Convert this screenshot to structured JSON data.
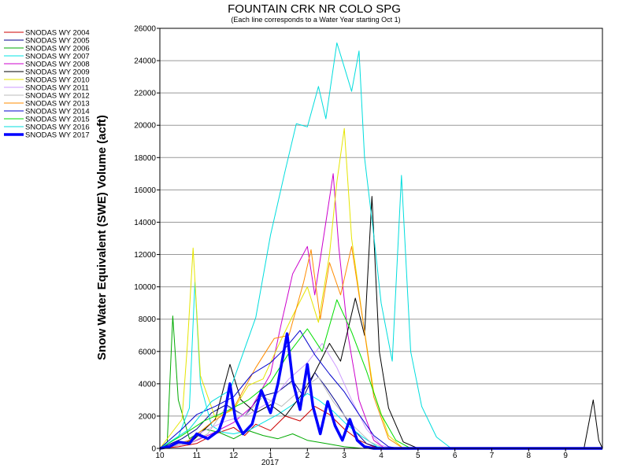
{
  "chart_data": {
    "type": "line",
    "title": "FOUNTAIN CRK NR COLO SPG",
    "subtitle": "(Each line corresponds to a Water Year starting Oct 1)",
    "ylabel": "Snow Water Equivalent (SWE) Volume (acft)",
    "xlabel": "",
    "x_ticks": [
      "10",
      "11",
      "12",
      "1",
      "2",
      "3",
      "4",
      "5",
      "6",
      "7",
      "8",
      "9"
    ],
    "x_year_label": "2017",
    "xlim": [
      0,
      12
    ],
    "ylim": [
      0,
      26000
    ],
    "y_ticks": [
      0,
      2000,
      4000,
      6000,
      8000,
      10000,
      12000,
      14000,
      16000,
      18000,
      20000,
      22000,
      24000,
      26000
    ],
    "grid": true,
    "legend_position": "left",
    "series": [
      {
        "name": "SNODAS WY 2004",
        "color": "#cc0000",
        "width": 1,
        "points": [
          [
            0.0,
            0
          ],
          [
            0.5,
            100
          ],
          [
            1.0,
            300
          ],
          [
            1.5,
            900
          ],
          [
            2.0,
            1300
          ],
          [
            2.3,
            800
          ],
          [
            2.6,
            1500
          ],
          [
            3.0,
            1100
          ],
          [
            3.4,
            2000
          ],
          [
            3.8,
            1700
          ],
          [
            4.2,
            2600
          ],
          [
            4.6,
            2100
          ],
          [
            5.0,
            1200
          ],
          [
            5.4,
            500
          ],
          [
            5.8,
            100
          ],
          [
            6.1,
            0
          ],
          [
            12,
            0
          ]
        ]
      },
      {
        "name": "SNODAS WY 2005",
        "color": "#00008b",
        "width": 1,
        "points": [
          [
            0.0,
            0
          ],
          [
            0.6,
            600
          ],
          [
            1.0,
            1200
          ],
          [
            1.4,
            2200
          ],
          [
            1.8,
            2700
          ],
          [
            2.3,
            2000
          ],
          [
            2.7,
            3200
          ],
          [
            3.2,
            3500
          ],
          [
            3.6,
            4200
          ],
          [
            3.9,
            3200
          ],
          [
            4.2,
            4700
          ],
          [
            4.5,
            3800
          ],
          [
            4.8,
            2800
          ],
          [
            5.2,
            1300
          ],
          [
            5.6,
            300
          ],
          [
            6.0,
            0
          ],
          [
            12,
            0
          ]
        ]
      },
      {
        "name": "SNODAS WY 2006",
        "color": "#00aa00",
        "width": 1,
        "points": [
          [
            0.0,
            0
          ],
          [
            0.2,
            400
          ],
          [
            0.35,
            8200
          ],
          [
            0.5,
            3000
          ],
          [
            0.8,
            600
          ],
          [
            1.2,
            1200
          ],
          [
            1.6,
            1000
          ],
          [
            2.0,
            600
          ],
          [
            2.4,
            1100
          ],
          [
            2.8,
            800
          ],
          [
            3.2,
            600
          ],
          [
            3.6,
            900
          ],
          [
            4.0,
            500
          ],
          [
            4.5,
            300
          ],
          [
            5.0,
            100
          ],
          [
            5.5,
            0
          ],
          [
            12,
            0
          ]
        ]
      },
      {
        "name": "SNODAS WY 2007",
        "color": "#00e5e5",
        "width": 1,
        "points": [
          [
            0.0,
            0
          ],
          [
            0.5,
            700
          ],
          [
            0.8,
            2500
          ],
          [
            0.95,
            10300
          ],
          [
            1.1,
            4000
          ],
          [
            1.4,
            1400
          ],
          [
            1.7,
            1000
          ],
          [
            2.0,
            900
          ],
          [
            2.4,
            1100
          ],
          [
            2.8,
            1600
          ],
          [
            3.2,
            2100
          ],
          [
            3.6,
            2700
          ],
          [
            4.0,
            3400
          ],
          [
            4.3,
            3000
          ],
          [
            4.7,
            2300
          ],
          [
            5.1,
            1400
          ],
          [
            5.5,
            700
          ],
          [
            5.9,
            100
          ],
          [
            6.3,
            0
          ],
          [
            12,
            0
          ]
        ]
      },
      {
        "name": "SNODAS WY 2008",
        "color": "#cc00cc",
        "width": 1,
        "points": [
          [
            0.0,
            0
          ],
          [
            0.8,
            300
          ],
          [
            1.4,
            900
          ],
          [
            2.0,
            1600
          ],
          [
            2.5,
            2600
          ],
          [
            3.0,
            4600
          ],
          [
            3.3,
            7800
          ],
          [
            3.6,
            10800
          ],
          [
            4.0,
            12500
          ],
          [
            4.2,
            9500
          ],
          [
            4.5,
            14000
          ],
          [
            4.7,
            17000
          ],
          [
            4.85,
            12500
          ],
          [
            5.1,
            7000
          ],
          [
            5.4,
            3000
          ],
          [
            5.8,
            500
          ],
          [
            6.1,
            0
          ],
          [
            12,
            0
          ]
        ]
      },
      {
        "name": "SNODAS WY 2009",
        "color": "#000000",
        "width": 1,
        "points": [
          [
            0.0,
            0
          ],
          [
            0.9,
            500
          ],
          [
            1.5,
            1800
          ],
          [
            1.9,
            5200
          ],
          [
            2.2,
            3000
          ],
          [
            2.6,
            2200
          ],
          [
            3.0,
            2700
          ],
          [
            3.4,
            2000
          ],
          [
            3.8,
            3200
          ],
          [
            4.2,
            4700
          ],
          [
            4.6,
            6500
          ],
          [
            4.9,
            5400
          ],
          [
            5.3,
            9300
          ],
          [
            5.55,
            7000
          ],
          [
            5.75,
            15600
          ],
          [
            5.95,
            6000
          ],
          [
            6.2,
            2500
          ],
          [
            6.6,
            400
          ],
          [
            7.0,
            0
          ],
          [
            11.5,
            0
          ],
          [
            11.75,
            3000
          ],
          [
            11.9,
            500
          ],
          [
            12,
            0
          ]
        ]
      },
      {
        "name": "SNODAS WY 2010",
        "color": "#e5e500",
        "width": 1,
        "points": [
          [
            0.0,
            0
          ],
          [
            0.6,
            1800
          ],
          [
            0.75,
            6500
          ],
          [
            0.9,
            12400
          ],
          [
            1.1,
            4500
          ],
          [
            1.5,
            1900
          ],
          [
            2.0,
            2400
          ],
          [
            2.4,
            3900
          ],
          [
            2.8,
            4300
          ],
          [
            3.2,
            6300
          ],
          [
            3.6,
            8200
          ],
          [
            4.0,
            10000
          ],
          [
            4.3,
            7800
          ],
          [
            4.6,
            12000
          ],
          [
            4.8,
            16500
          ],
          [
            5.0,
            19800
          ],
          [
            5.2,
            13000
          ],
          [
            5.5,
            8000
          ],
          [
            5.8,
            3500
          ],
          [
            6.2,
            800
          ],
          [
            6.6,
            0
          ],
          [
            12,
            0
          ]
        ]
      },
      {
        "name": "SNODAS WY 2011",
        "color": "#cc99ff",
        "width": 1,
        "points": [
          [
            0.0,
            0
          ],
          [
            0.7,
            400
          ],
          [
            1.2,
            1100
          ],
          [
            1.8,
            1700
          ],
          [
            2.4,
            2100
          ],
          [
            3.0,
            2900
          ],
          [
            3.5,
            4300
          ],
          [
            4.0,
            5300
          ],
          [
            4.4,
            6500
          ],
          [
            4.8,
            5000
          ],
          [
            5.2,
            3000
          ],
          [
            5.6,
            1200
          ],
          [
            6.0,
            200
          ],
          [
            6.3,
            0
          ],
          [
            12,
            0
          ]
        ]
      },
      {
        "name": "SNODAS WY 2012",
        "color": "#bbbbbb",
        "width": 1,
        "points": [
          [
            0.0,
            0
          ],
          [
            0.8,
            300
          ],
          [
            1.3,
            900
          ],
          [
            1.8,
            2600
          ],
          [
            2.3,
            2000
          ],
          [
            2.8,
            3200
          ],
          [
            3.3,
            2600
          ],
          [
            3.8,
            3600
          ],
          [
            4.3,
            4400
          ],
          [
            4.7,
            2900
          ],
          [
            5.2,
            1500
          ],
          [
            5.7,
            400
          ],
          [
            6.1,
            0
          ],
          [
            12,
            0
          ]
        ]
      },
      {
        "name": "SNODAS WY 2013",
        "color": "#ff8c00",
        "width": 1,
        "points": [
          [
            0.0,
            0
          ],
          [
            0.8,
            500
          ],
          [
            1.4,
            1600
          ],
          [
            2.0,
            2500
          ],
          [
            2.6,
            5000
          ],
          [
            3.1,
            6800
          ],
          [
            3.5,
            7000
          ],
          [
            3.9,
            10300
          ],
          [
            4.1,
            12300
          ],
          [
            4.35,
            8000
          ],
          [
            4.6,
            11500
          ],
          [
            4.9,
            9500
          ],
          [
            5.2,
            12500
          ],
          [
            5.5,
            8000
          ],
          [
            5.8,
            3200
          ],
          [
            6.2,
            600
          ],
          [
            6.6,
            0
          ],
          [
            12,
            0
          ]
        ]
      },
      {
        "name": "SNODAS WY 2014",
        "color": "#0000cd",
        "width": 1,
        "points": [
          [
            0.0,
            0
          ],
          [
            0.6,
            1200
          ],
          [
            1.0,
            2100
          ],
          [
            1.5,
            2600
          ],
          [
            2.0,
            3200
          ],
          [
            2.5,
            4600
          ],
          [
            3.0,
            5300
          ],
          [
            3.4,
            6200
          ],
          [
            3.8,
            7300
          ],
          [
            4.2,
            5800
          ],
          [
            4.6,
            4600
          ],
          [
            5.0,
            3500
          ],
          [
            5.4,
            2100
          ],
          [
            5.8,
            800
          ],
          [
            6.2,
            100
          ],
          [
            6.5,
            0
          ],
          [
            12,
            0
          ]
        ]
      },
      {
        "name": "SNODAS WY 2015",
        "color": "#00dd00",
        "width": 1,
        "points": [
          [
            0.0,
            0
          ],
          [
            0.6,
            800
          ],
          [
            1.2,
            1700
          ],
          [
            1.8,
            2300
          ],
          [
            2.4,
            3000
          ],
          [
            3.0,
            4100
          ],
          [
            3.5,
            5900
          ],
          [
            4.0,
            7400
          ],
          [
            4.4,
            6000
          ],
          [
            4.8,
            9200
          ],
          [
            5.2,
            7200
          ],
          [
            5.6,
            4800
          ],
          [
            6.0,
            2100
          ],
          [
            6.4,
            500
          ],
          [
            6.8,
            0
          ],
          [
            12,
            0
          ]
        ]
      },
      {
        "name": "SNODAS WY 2016",
        "color": "#00dddd",
        "width": 1,
        "points": [
          [
            0.0,
            0
          ],
          [
            0.8,
            1200
          ],
          [
            1.4,
            2900
          ],
          [
            1.9,
            3600
          ],
          [
            2.6,
            8100
          ],
          [
            3.0,
            13200
          ],
          [
            3.4,
            17200
          ],
          [
            3.7,
            20100
          ],
          [
            4.0,
            19900
          ],
          [
            4.3,
            22400
          ],
          [
            4.5,
            20400
          ],
          [
            4.8,
            25100
          ],
          [
            5.0,
            23600
          ],
          [
            5.2,
            22100
          ],
          [
            5.4,
            24600
          ],
          [
            5.55,
            18000
          ],
          [
            5.8,
            13200
          ],
          [
            6.0,
            9000
          ],
          [
            6.3,
            5400
          ],
          [
            6.55,
            16900
          ],
          [
            6.8,
            6000
          ],
          [
            7.1,
            2600
          ],
          [
            7.5,
            700
          ],
          [
            7.9,
            0
          ],
          [
            12,
            0
          ]
        ]
      },
      {
        "name": "SNODAS WY 2017",
        "color": "#0000ff",
        "width": 3.5,
        "points": [
          [
            0.0,
            0
          ],
          [
            0.25,
            100
          ],
          [
            0.5,
            400
          ],
          [
            0.8,
            300
          ],
          [
            1.0,
            900
          ],
          [
            1.3,
            600
          ],
          [
            1.6,
            1100
          ],
          [
            1.75,
            2100
          ],
          [
            1.9,
            4000
          ],
          [
            2.05,
            1800
          ],
          [
            2.25,
            900
          ],
          [
            2.5,
            1500
          ],
          [
            2.75,
            3600
          ],
          [
            3.0,
            2200
          ],
          [
            3.2,
            4000
          ],
          [
            3.45,
            7100
          ],
          [
            3.6,
            4200
          ],
          [
            3.8,
            2400
          ],
          [
            4.0,
            5200
          ],
          [
            4.15,
            2600
          ],
          [
            4.35,
            900
          ],
          [
            4.55,
            2900
          ],
          [
            4.75,
            1400
          ],
          [
            4.95,
            500
          ],
          [
            5.15,
            1800
          ],
          [
            5.35,
            500
          ],
          [
            5.55,
            100
          ],
          [
            5.8,
            0
          ],
          [
            12,
            0
          ]
        ]
      }
    ]
  }
}
